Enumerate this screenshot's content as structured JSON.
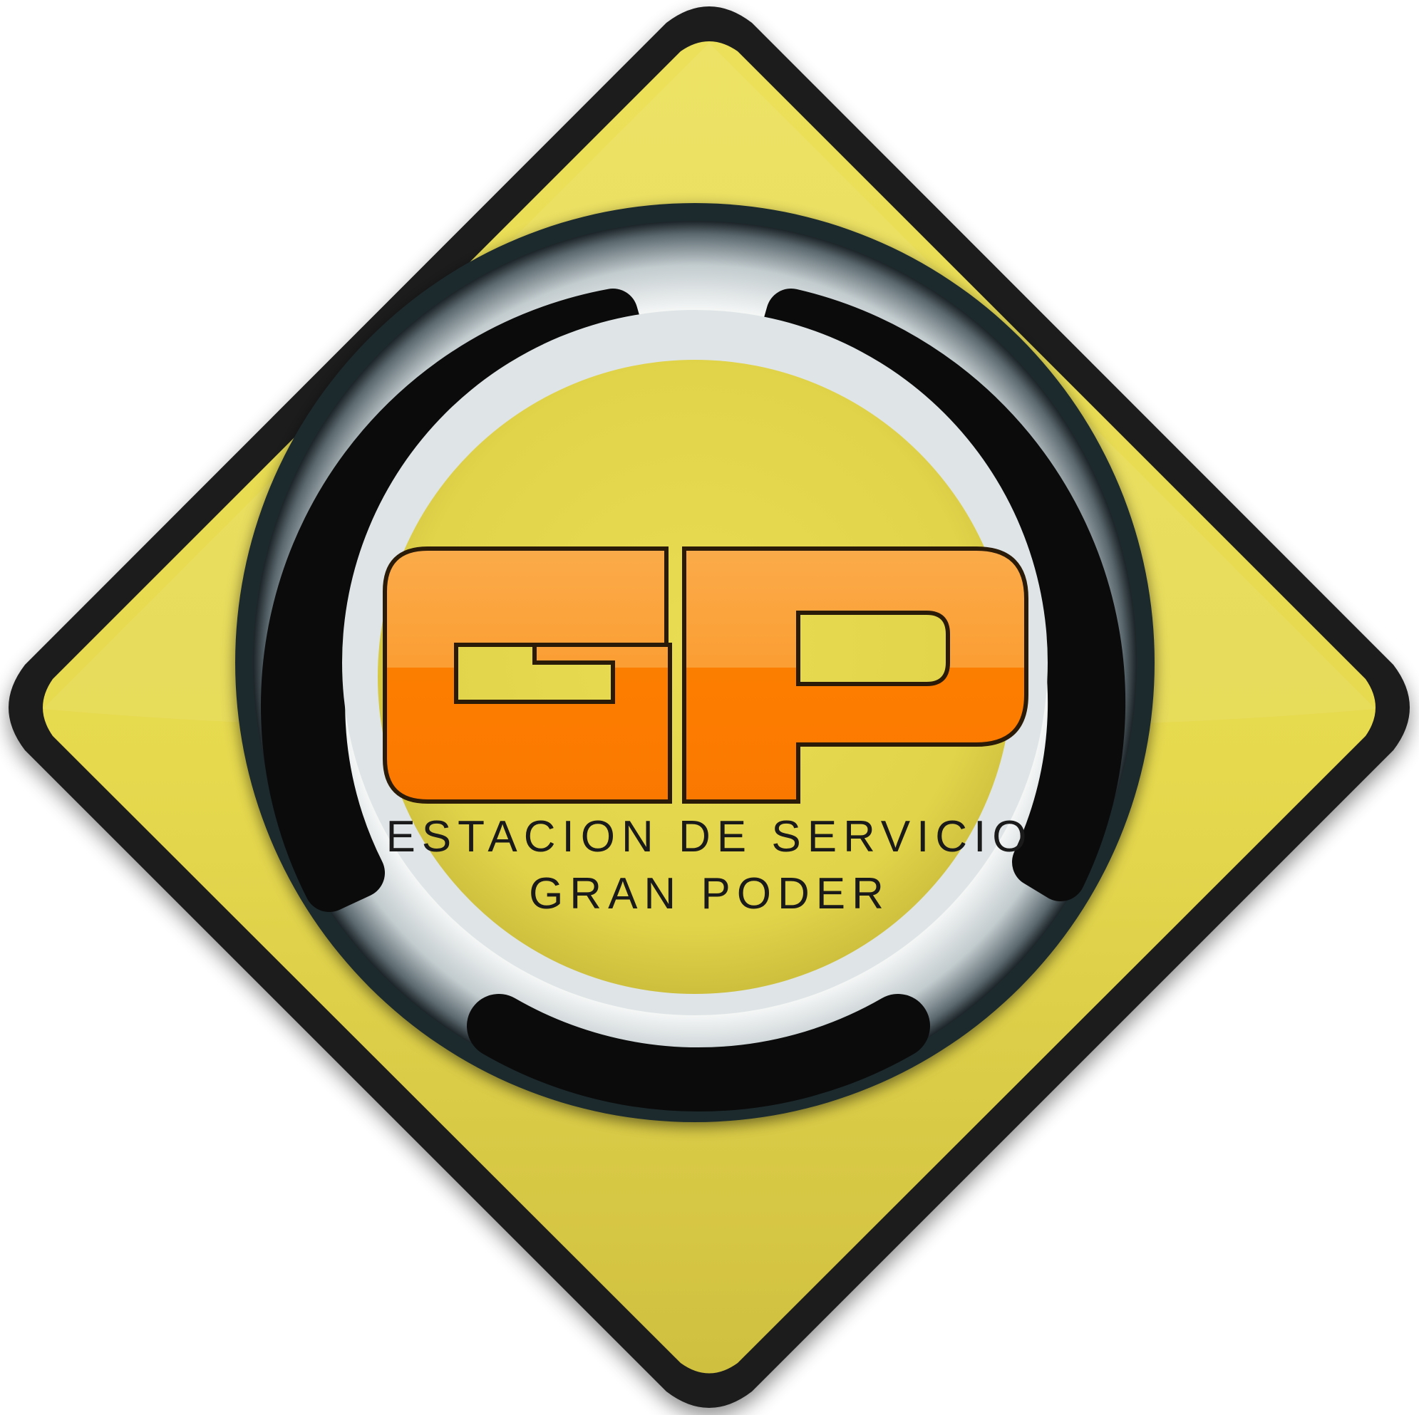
{
  "logo": {
    "monogram": "GP",
    "line1": "ESTACION DE SERVICIO",
    "line2": "GRAN PODER"
  },
  "colors": {
    "diamond_fill": "#e8dc50",
    "diamond_border": "#1b1b1b",
    "ring_silver": "#c9d1d3",
    "ring_dark": "#0a0a0a",
    "monogram_top": "#fba33f",
    "monogram_bottom": "#fc7c00",
    "text": "#1a1a1a",
    "background": "#ffffff"
  }
}
